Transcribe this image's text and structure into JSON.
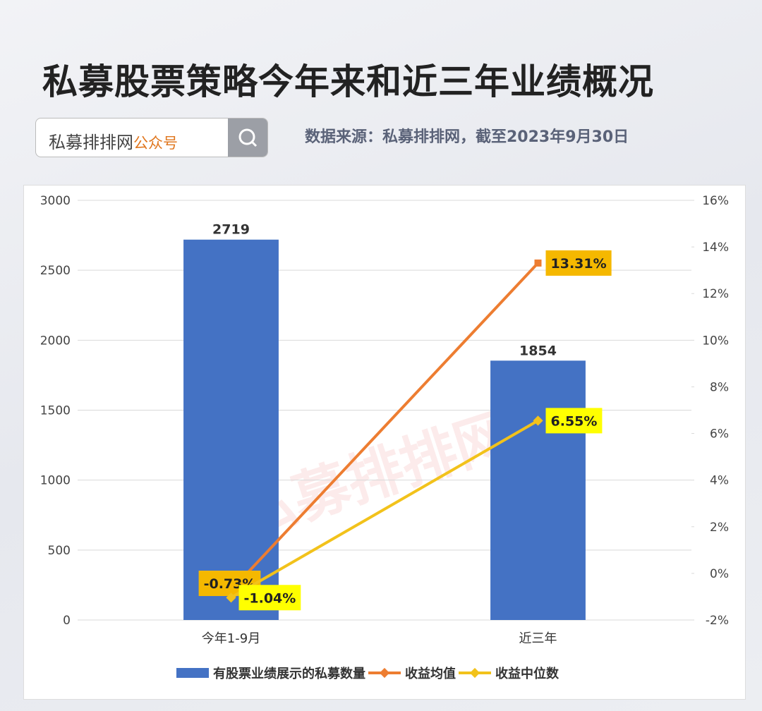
{
  "header": {
    "title": "私募股票策略今年来和近三年业绩概况",
    "search_text": "私募排排网",
    "search_tag": "公众号",
    "source": "数据来源：私募排排网，截至2023年9月30日"
  },
  "watermark": "私募排排网",
  "chart_data": {
    "type": "bar-line",
    "categories": [
      "今年1-9月",
      "近三年"
    ],
    "series": [
      {
        "name": "有股票业绩展示的私募数量",
        "type": "bar",
        "color": "#4472c4",
        "values": [
          2719,
          1854
        ]
      },
      {
        "name": "收益均值",
        "type": "line",
        "axis": "y2",
        "color": "#ed7d31",
        "label_color": "#f5b800",
        "values": [
          -0.73,
          13.31
        ],
        "value_labels": [
          "-0.73%",
          "13.31%"
        ]
      },
      {
        "name": "收益中位数",
        "type": "line",
        "axis": "y2",
        "color": "#f2c21b",
        "label_color": "#ffff00",
        "values": [
          -1.04,
          6.55
        ],
        "value_labels": [
          "-1.04%",
          "6.55%"
        ]
      }
    ],
    "ylim": [
      0,
      3000
    ],
    "yticks": [
      0,
      500,
      1000,
      1500,
      2000,
      2500,
      3000
    ],
    "y2lim": [
      -2,
      16
    ],
    "y2ticks": [
      {
        "value": -2,
        "label": "-2%"
      },
      {
        "value": 0,
        "label": "0%"
      },
      {
        "value": 2,
        "label": "2%"
      },
      {
        "value": 4,
        "label": "4%"
      },
      {
        "value": 6,
        "label": "6%"
      },
      {
        "value": 8,
        "label": "8%"
      },
      {
        "value": 10,
        "label": "10%"
      },
      {
        "value": 12,
        "label": "12%"
      },
      {
        "value": 14,
        "label": "14%"
      },
      {
        "value": 16,
        "label": "16%"
      }
    ],
    "grid": true,
    "legend": "bottom"
  }
}
